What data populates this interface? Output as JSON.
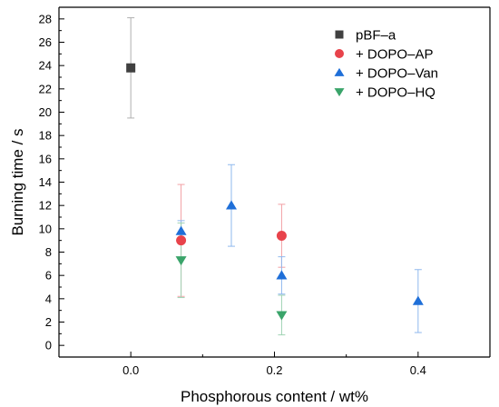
{
  "chart_data": {
    "type": "scatter",
    "title": "",
    "xlabel": "Phosphorous content / wt%",
    "ylabel": "Burning time / s",
    "xlim": [
      -0.1,
      0.5
    ],
    "ylim": [
      -1,
      29
    ],
    "xticks": [
      0.0,
      0.2,
      0.4
    ],
    "xtick_labels": [
      "0.0",
      "0.2",
      "0.4"
    ],
    "yticks": [
      0,
      2,
      4,
      6,
      8,
      10,
      12,
      14,
      16,
      18,
      20,
      22,
      24,
      26,
      28
    ],
    "ytick_labels": [
      "0",
      "2",
      "4",
      "6",
      "8",
      "10",
      "12",
      "14",
      "16",
      "18",
      "20",
      "22",
      "24",
      "26",
      "28"
    ],
    "grid": false,
    "legend_position": "top-right",
    "series": [
      {
        "name": "pBF–a",
        "marker": "square",
        "color": "#404040",
        "errcolor": "#b0b0b0",
        "points": [
          {
            "x": 0.0,
            "y": 23.8,
            "err": 4.3
          }
        ]
      },
      {
        "name": "+ DOPO–AP",
        "marker": "circle",
        "color": "#e8434b",
        "errcolor": "#f2a0a4",
        "points": [
          {
            "x": 0.07,
            "y": 9.0,
            "err": 4.8
          },
          {
            "x": 0.21,
            "y": 9.4,
            "err": 2.7
          }
        ]
      },
      {
        "name": "+ DOPO–Van",
        "marker": "triangle-up",
        "color": "#1f6fd8",
        "errcolor": "#8fb8ee",
        "points": [
          {
            "x": 0.07,
            "y": 9.8,
            "err": 0.9
          },
          {
            "x": 0.14,
            "y": 12.0,
            "err": 3.5
          },
          {
            "x": 0.21,
            "y": 6.0,
            "err": 1.6
          },
          {
            "x": 0.4,
            "y": 3.8,
            "err": 2.7
          }
        ]
      },
      {
        "name": "+ DOPO–HQ",
        "marker": "triangle-down",
        "color": "#3aa46a",
        "errcolor": "#9fd3b4",
        "points": [
          {
            "x": 0.07,
            "y": 7.3,
            "err": 3.2
          },
          {
            "x": 0.21,
            "y": 2.6,
            "err": 1.7
          }
        ]
      }
    ]
  }
}
